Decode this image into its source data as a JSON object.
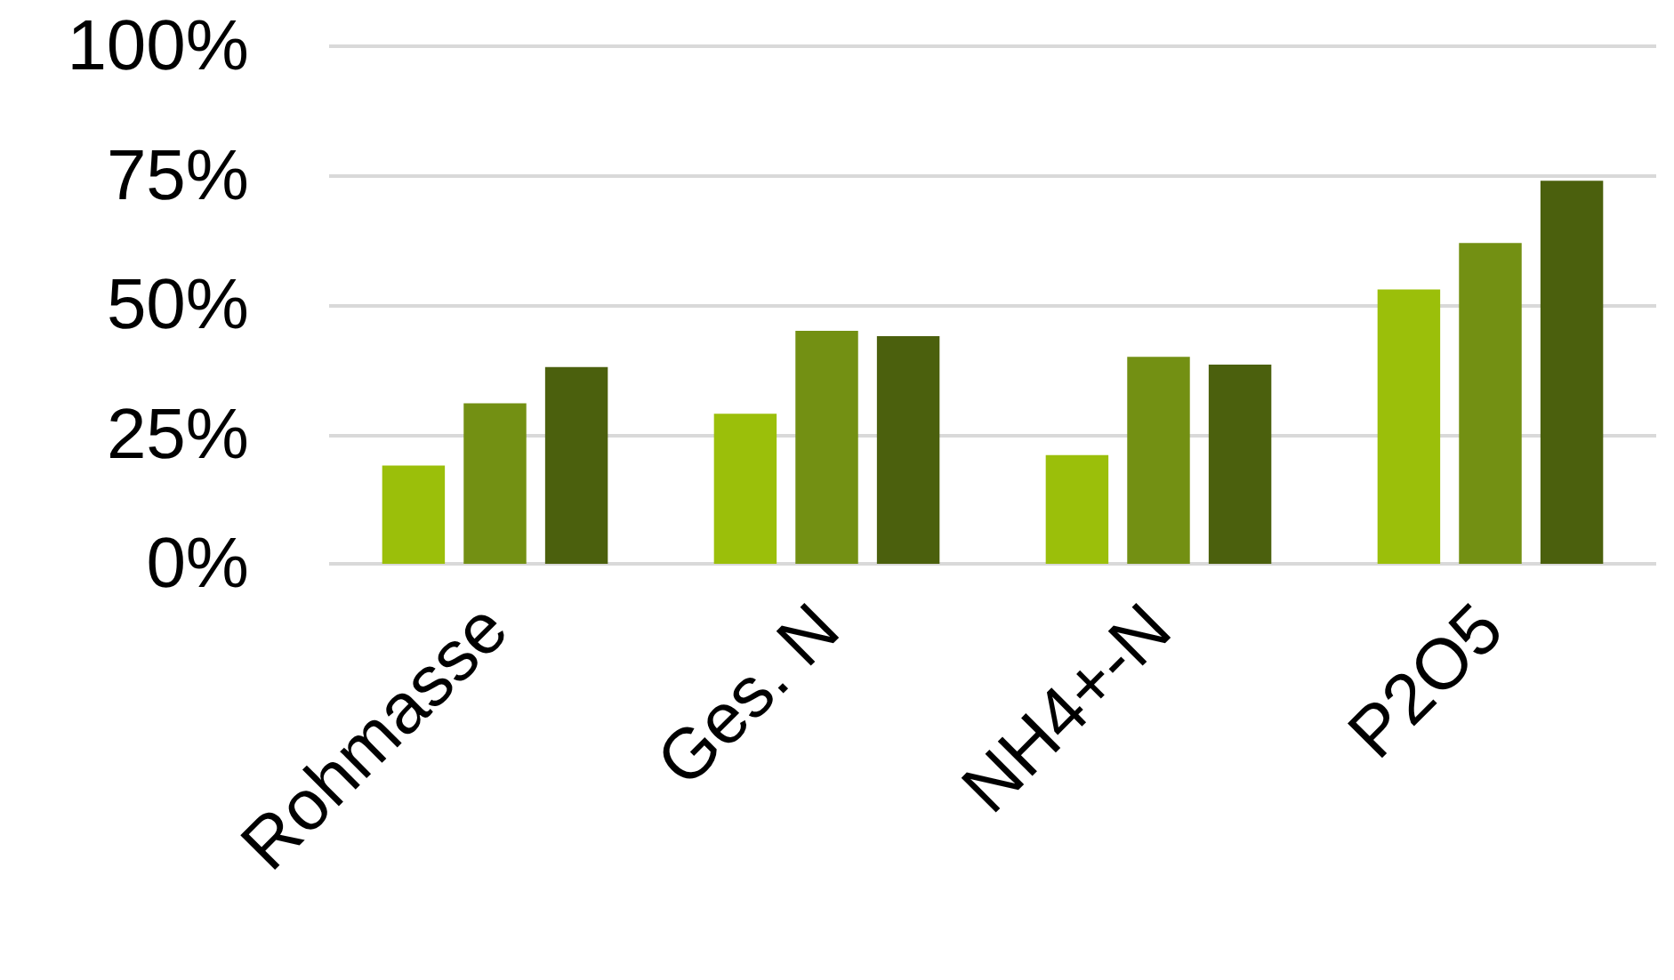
{
  "chart_data": {
    "type": "bar",
    "categories": [
      "Rohmasse",
      "Ges. N",
      "NH4+-N",
      "P2O5"
    ],
    "series": [
      {
        "color": "#9bbf0a",
        "values": [
          19,
          29,
          21,
          53
        ]
      },
      {
        "color": "#739013",
        "values": [
          31,
          45,
          40,
          62
        ]
      },
      {
        "color": "#4b600d",
        "values": [
          38,
          44,
          38.5,
          74
        ]
      }
    ],
    "ylim": [
      0,
      100
    ],
    "yticks": [
      {
        "value": 0,
        "label": "0%"
      },
      {
        "value": 25,
        "label": "25%"
      },
      {
        "value": 50,
        "label": "50%"
      },
      {
        "value": 75,
        "label": "75%"
      },
      {
        "value": 100,
        "label": "100%"
      }
    ],
    "grid": true
  }
}
